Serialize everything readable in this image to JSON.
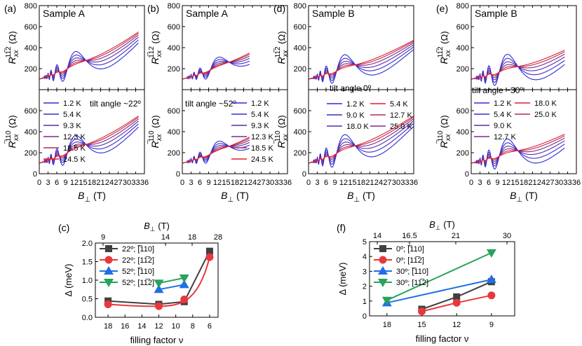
{
  "figure_colors": {
    "c1": "#2b2bd9",
    "c2": "#3a2cc7",
    "c3": "#5a2aa8",
    "c4": "#7d2a85",
    "c5": "#b32a5c",
    "c6": "#e31e24"
  },
  "chart_data": [
    {
      "id": "a",
      "type": "line",
      "panel_label": "(a)",
      "sample": "Sample A",
      "annotation": "tilt angle ~22º",
      "top_ylabel": "R_xx^{11̅2} (Ω)",
      "bottom_ylabel": "R_xx^{̅110} (Ω)",
      "xlabel": "B⊥ (T)",
      "xlim": [
        0,
        36
      ],
      "xticks": [
        "0",
        "3",
        "6",
        "9",
        "12",
        "15",
        "18",
        "21",
        "24",
        "27",
        "30",
        "33",
        "36"
      ],
      "top_ylim": [
        0,
        800
      ],
      "top_yticks": [
        "0",
        "200",
        "400",
        "600",
        "800"
      ],
      "bottom_ylim": [
        0,
        800
      ],
      "bottom_yticks": [
        "0",
        "200",
        "400",
        "600",
        "800"
      ],
      "legend": [
        "1.2 K",
        "5.4 K",
        "9.3 K",
        "12.3 K",
        "18.5 K",
        "24.5 K"
      ],
      "x_end": 34
    },
    {
      "id": "b",
      "type": "line",
      "panel_label": "(b)",
      "sample": "Sample A",
      "annotation": "tilt angle ~52º",
      "top_ylabel": "R_xx^{1̅12} (Ω)",
      "bottom_ylabel": "R_xx^{̅110} (Ω)",
      "xlabel": "B⊥ (T)",
      "xlim": [
        0,
        36
      ],
      "xticks": [
        "0",
        "3",
        "6",
        "9",
        "12",
        "15",
        "18",
        "21",
        "24",
        "27",
        "30",
        "33",
        "36"
      ],
      "top_ylim": [
        0,
        800
      ],
      "top_yticks": [
        "0",
        "200",
        "400",
        "600",
        "800"
      ],
      "bottom_ylim": [
        0,
        800
      ],
      "bottom_yticks": [
        "0",
        "200",
        "400",
        "600",
        "800"
      ],
      "legend": [
        "1.2 K",
        "5.4 K",
        "9.3 K",
        "12.3 K",
        "18.5 K",
        "24.5 K"
      ],
      "x_end": 23
    },
    {
      "id": "d",
      "type": "line",
      "panel_label": "(d)",
      "sample": "Sample B",
      "annotation": "tilt angle 0º",
      "top_ylabel": "R_xx^{11̅2} (Ω)",
      "bottom_ylabel": "R_xx^{̅110} (Ω)",
      "xlabel": "B⊥ (T)",
      "xlim": [
        0,
        36
      ],
      "xticks": [
        "0",
        "3",
        "6",
        "9",
        "12",
        "15",
        "18",
        "21",
        "24",
        "27",
        "30",
        "33",
        "36"
      ],
      "top_ylim": [
        0,
        800
      ],
      "top_yticks": [
        "0",
        "200",
        "400",
        "600",
        "800"
      ],
      "bottom_ylim": [
        0,
        800
      ],
      "bottom_yticks": [
        "0",
        "200",
        "400",
        "600",
        "800"
      ],
      "legend": [
        "1.2 K",
        "5.4 K",
        "9.0 K",
        "12.7 K",
        "18.0 K",
        "25.0 K"
      ],
      "x_end": 36
    },
    {
      "id": "e",
      "type": "line",
      "panel_label": "(e)",
      "sample": "Sample B",
      "annotation": "tilt angle ~30º",
      "top_ylabel": "R_xx^{11̅2} (Ω)",
      "bottom_ylabel": "R_xx^{̅110} (Ω)",
      "xlabel": "B⊥ (T)",
      "xlim": [
        0,
        36
      ],
      "xticks": [
        "0",
        "3",
        "6",
        "9",
        "12",
        "15",
        "18",
        "21",
        "24",
        "27",
        "30",
        "33",
        "36"
      ],
      "top_ylim": [
        0,
        800
      ],
      "top_yticks": [
        "0",
        "200",
        "400",
        "600",
        "800"
      ],
      "bottom_ylim": [
        0,
        800
      ],
      "bottom_yticks": [
        "0",
        "200",
        "400",
        "600",
        "800"
      ],
      "legend": [
        "1.2 K",
        "18.0 K",
        "5.4 K",
        "25.0 K",
        "9.0 K",
        "12.7 K"
      ],
      "x_end": 32
    },
    {
      "id": "c",
      "type": "line",
      "panel_label": "(c)",
      "xlabel": "filling factor ν",
      "ylabel": "Δ (meV)",
      "top_xlabel": "B⊥ (T)",
      "top_xticks": [
        "9",
        "14",
        "18",
        "28"
      ],
      "xlim": [
        19.5,
        5
      ],
      "xticks": [
        "18",
        "16",
        "14",
        "12",
        "10",
        "8",
        "6"
      ],
      "ylim": [
        0,
        2
      ],
      "yticks": [
        "0.0",
        "0.5",
        "1.0",
        "1.5",
        "2.0"
      ],
      "series": [
        {
          "name": "22º; [̅110]",
          "color": "#404040",
          "marker": "square",
          "x": [
            18,
            12,
            9,
            6
          ],
          "y": [
            0.44,
            0.35,
            0.42,
            1.78
          ]
        },
        {
          "name": "22º; [11̅2]",
          "color": "#e8383d",
          "marker": "circle",
          "x": [
            18,
            12,
            9,
            6
          ],
          "y": [
            0.35,
            0.3,
            0.48,
            1.62
          ]
        },
        {
          "name": "52º; [̅110]",
          "color": "#1f6fe5",
          "marker": "triangle-up",
          "x": [
            12,
            9
          ],
          "y": [
            0.75,
            0.88
          ]
        },
        {
          "name": "52º; [11̅2]",
          "color": "#27a35a",
          "marker": "triangle-down",
          "x": [
            12,
            9
          ],
          "y": [
            0.92,
            1.06
          ]
        }
      ]
    },
    {
      "id": "f",
      "type": "line",
      "panel_label": "(f)",
      "xlabel": "filling factor ν",
      "ylabel": "Δ (meV)",
      "top_xlabel": "B⊥ (T)",
      "top_xticks": [
        "14",
        "16.5",
        "21",
        "30"
      ],
      "xlim": [
        19.5,
        7
      ],
      "xticks": [
        "18",
        "15",
        "12",
        "9"
      ],
      "ylim": [
        0,
        5
      ],
      "yticks": [
        "0",
        "1",
        "2",
        "3",
        "4",
        "5"
      ],
      "series": [
        {
          "name": "0º; [̅110]",
          "color": "#404040",
          "marker": "square",
          "x": [
            15,
            12,
            9
          ],
          "y": [
            0.45,
            1.28,
            2.3
          ]
        },
        {
          "name": "0º; [11̅2]",
          "color": "#e8383d",
          "marker": "circle",
          "x": [
            15,
            12,
            9
          ],
          "y": [
            0.3,
            0.88,
            1.38
          ]
        },
        {
          "name": "30º; [̅110]",
          "color": "#1f6fe5",
          "marker": "triangle-up",
          "x": [
            18,
            9
          ],
          "y": [
            0.88,
            2.45
          ]
        },
        {
          "name": "30º; [11̅2]",
          "color": "#27a35a",
          "marker": "triangle-down",
          "x": [
            18,
            9
          ],
          "y": [
            1.05,
            4.25
          ]
        }
      ]
    }
  ]
}
